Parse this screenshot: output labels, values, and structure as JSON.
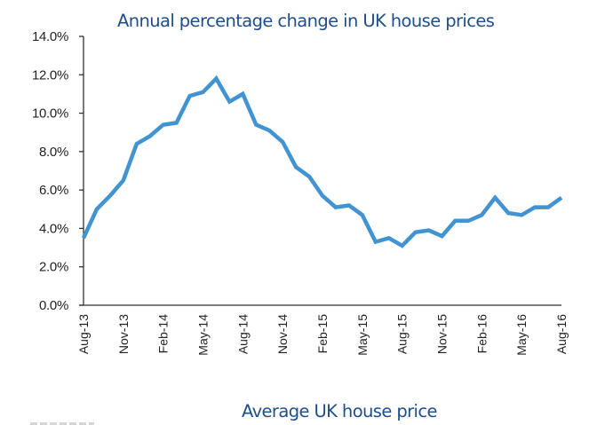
{
  "chart_data": {
    "type": "line",
    "title": "Annual percentage change in UK house prices",
    "xlabel": "",
    "ylabel": "",
    "ylim": [
      0,
      14
    ],
    "yticks": [
      0,
      2,
      4,
      6,
      8,
      10,
      12,
      14
    ],
    "ytick_labels": [
      "0.0%",
      "2.0%",
      "4.0%",
      "6.0%",
      "8.0%",
      "10.0%",
      "12.0%",
      "14.0%"
    ],
    "grid": false,
    "legend": "none",
    "x": [
      "Aug-13",
      "Sep-13",
      "Oct-13",
      "Nov-13",
      "Dec-13",
      "Jan-14",
      "Feb-14",
      "Mar-14",
      "Apr-14",
      "May-14",
      "Jun-14",
      "Jul-14",
      "Aug-14",
      "Sep-14",
      "Oct-14",
      "Nov-14",
      "Dec-14",
      "Jan-15",
      "Feb-15",
      "Mar-15",
      "Apr-15",
      "May-15",
      "Jun-15",
      "Jul-15",
      "Aug-15",
      "Sep-15",
      "Oct-15",
      "Nov-15",
      "Dec-15",
      "Jan-16",
      "Feb-16",
      "Mar-16",
      "Apr-16",
      "May-16",
      "Jun-16",
      "Jul-16",
      "Aug-16"
    ],
    "xtick_labels": [
      "Aug-13",
      "Nov-13",
      "Feb-14",
      "May-14",
      "Aug-14",
      "Nov-14",
      "Feb-15",
      "May-15",
      "Aug-15",
      "Nov-15",
      "Feb-16",
      "May-16",
      "Aug-16"
    ],
    "series": [
      {
        "name": "Annual % change",
        "color": "#4193d2",
        "values": [
          3.5,
          5.0,
          5.7,
          6.5,
          8.4,
          8.8,
          9.4,
          9.5,
          10.9,
          11.1,
          11.8,
          10.6,
          11.0,
          9.4,
          9.1,
          8.5,
          7.2,
          6.7,
          5.7,
          5.1,
          5.2,
          4.7,
          3.3,
          3.5,
          3.1,
          3.8,
          3.9,
          3.6,
          4.4,
          4.4,
          4.7,
          5.6,
          4.8,
          4.7,
          5.1,
          5.1,
          5.6
        ]
      }
    ]
  },
  "next_chart": {
    "title": "Average UK house price"
  },
  "colors": {
    "title": "#1f4e8c",
    "line": "#4193d2",
    "axis": "#333333"
  }
}
